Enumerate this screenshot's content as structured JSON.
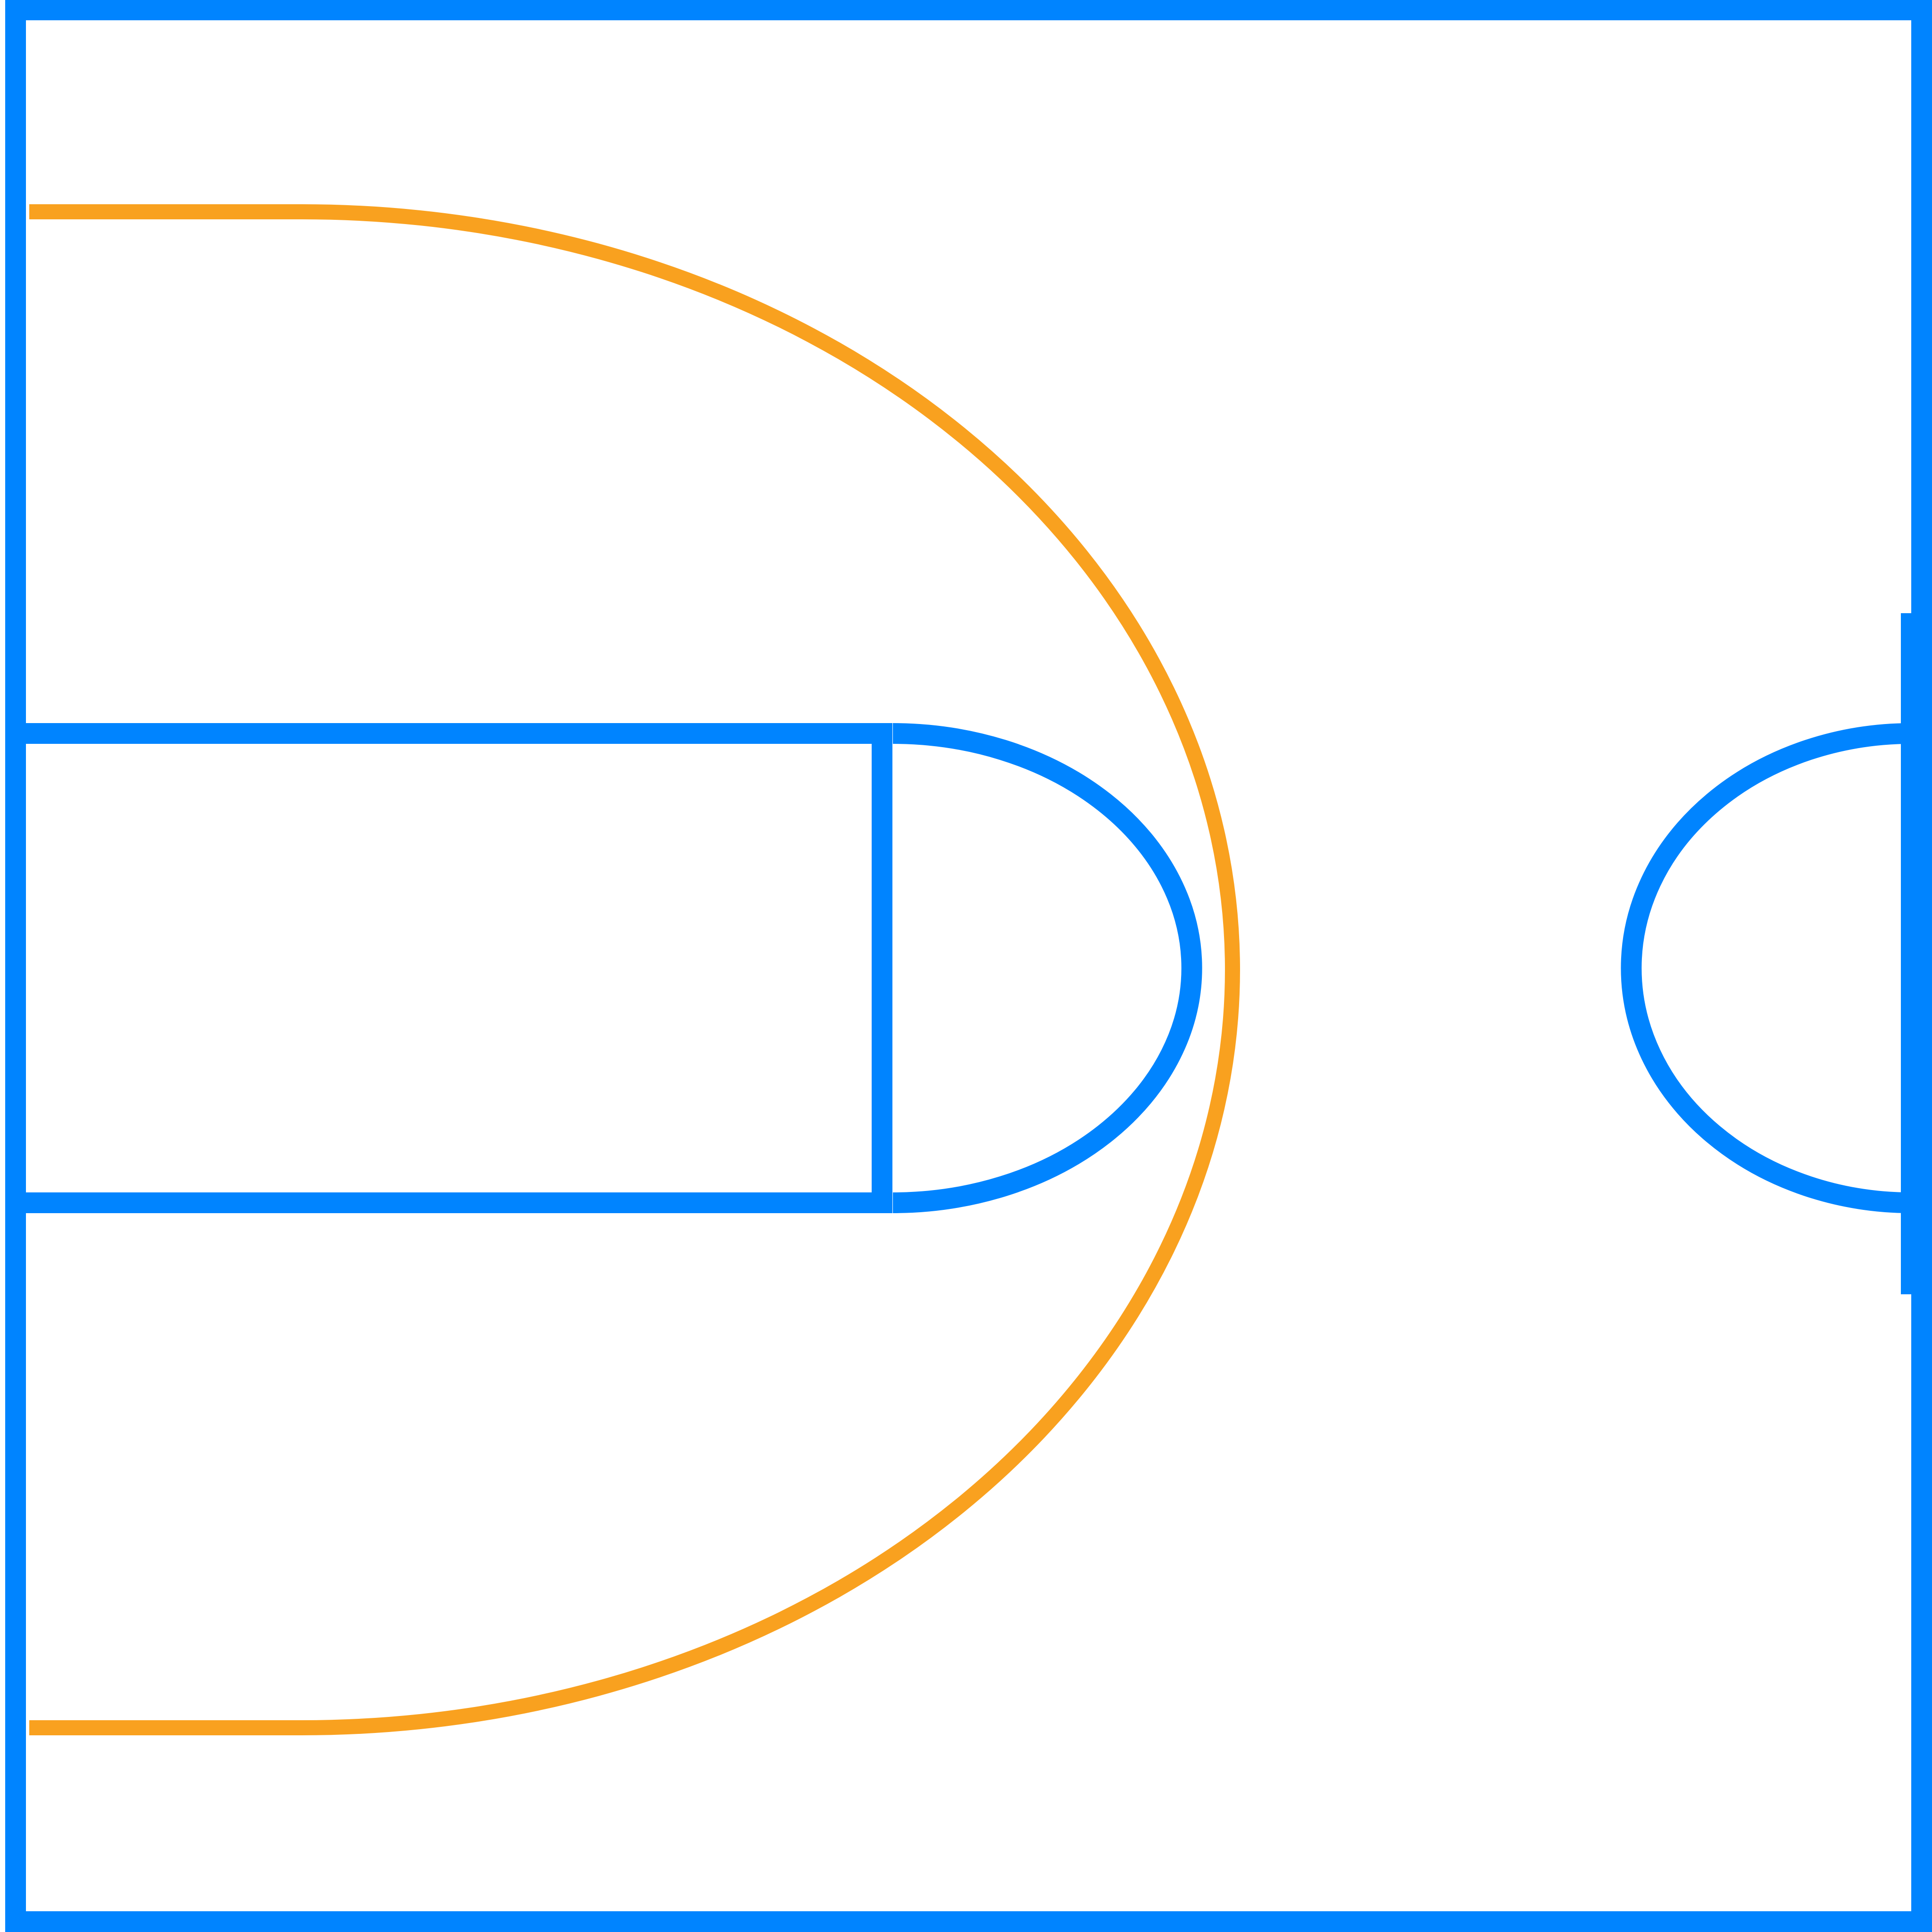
{
  "diagram": {
    "type": "basketball-half-court",
    "colors": {
      "court_lines": "#0084FF",
      "three_point_line": "#F9A11F",
      "background": "#FFFFFF"
    },
    "elements": [
      "court-boundary",
      "three-point-line",
      "free-throw-lane",
      "free-throw-circle",
      "center-circle-half",
      "half-court-line"
    ]
  }
}
